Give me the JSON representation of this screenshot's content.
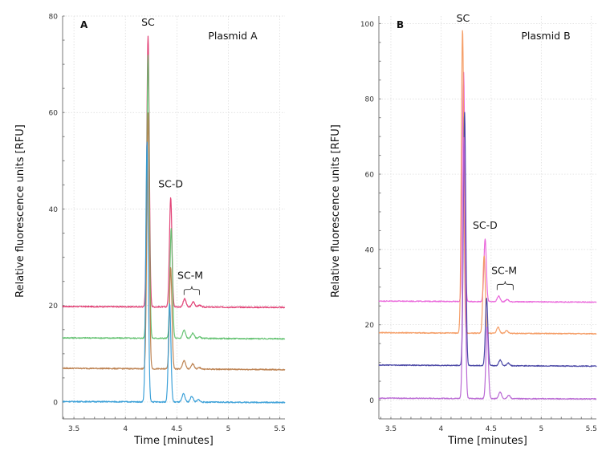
{
  "chart_data": [
    {
      "type": "line",
      "panel": "A",
      "title": "Plasmid A",
      "xlabel": "Time [minutes]",
      "ylabel": "Relative fluorescence units [RFU]",
      "xlim": [
        3.39,
        5.55
      ],
      "ylim": [
        -3.5,
        80
      ],
      "xticks": [
        "3.5",
        "4",
        "4.5",
        "5",
        "5.5"
      ],
      "xtick_values": [
        3.5,
        4,
        4.5,
        5,
        5.5
      ],
      "yticks": [
        "0",
        "20",
        "40",
        "60",
        "80"
      ],
      "ytick_values": [
        0,
        20,
        40,
        60,
        80
      ],
      "grid": true,
      "annotations": [
        {
          "text": "SC",
          "x": 4.22,
          "y": 78
        },
        {
          "text": "SC-D",
          "x": 4.44,
          "y": 44.5
        },
        {
          "text": "SC-M",
          "x": 4.63,
          "y": 25.5,
          "bracket": [
            4.57,
            4.72
          ]
        }
      ],
      "series": [
        {
          "name": "trace-pink",
          "color": "#e0336b",
          "baseline": 19.8,
          "baseline_end": 19.6,
          "peaks": [
            {
              "x": 4.22,
              "height": 76
            },
            {
              "x": 4.44,
              "height": 42.5
            },
            {
              "x": 4.575,
              "height": 21.5
            },
            {
              "x": 4.66,
              "height": 20.9
            },
            {
              "x": 4.72,
              "height": 20.2
            }
          ]
        },
        {
          "name": "trace-green",
          "color": "#5cbf6a",
          "baseline": 13.3,
          "baseline_end": 13.1,
          "peaks": [
            {
              "x": 4.22,
              "height": 72
            },
            {
              "x": 4.445,
              "height": 36
            },
            {
              "x": 4.57,
              "height": 15
            },
            {
              "x": 4.655,
              "height": 14.4
            },
            {
              "x": 4.72,
              "height": 13.6
            }
          ]
        },
        {
          "name": "trace-brown",
          "color": "#b87a45",
          "baseline": 7.0,
          "baseline_end": 6.7,
          "peaks": [
            {
              "x": 4.22,
              "height": 60
            },
            {
              "x": 4.44,
              "height": 28
            },
            {
              "x": 4.57,
              "height": 8.8
            },
            {
              "x": 4.655,
              "height": 8.1
            },
            {
              "x": 4.72,
              "height": 7.3
            }
          ]
        },
        {
          "name": "trace-blue",
          "color": "#2f9ad6",
          "baseline": 0.1,
          "baseline_end": -0.1,
          "peaks": [
            {
              "x": 4.21,
              "height": 54
            },
            {
              "x": 4.43,
              "height": 20.5
            },
            {
              "x": 4.565,
              "height": 1.8
            },
            {
              "x": 4.645,
              "height": 1.3
            },
            {
              "x": 4.71,
              "height": 0.6
            }
          ]
        }
      ]
    },
    {
      "type": "line",
      "panel": "B",
      "title": "Plasmid B",
      "xlabel": "Time [minutes]",
      "ylabel": "Relative fluorescence units [RFU]",
      "xlim": [
        3.38,
        5.55
      ],
      "ylim": [
        -5,
        102
      ],
      "xticks": [
        "3.5",
        "4",
        "4.5",
        "5",
        "5.5"
      ],
      "xtick_values": [
        3.5,
        4,
        4.5,
        5,
        5.5
      ],
      "yticks": [
        "0",
        "20",
        "40",
        "60",
        "80",
        "100"
      ],
      "ytick_values": [
        0,
        20,
        40,
        60,
        80,
        100
      ],
      "grid": true,
      "annotations": [
        {
          "text": "SC",
          "x": 4.22,
          "y": 100.5
        },
        {
          "text": "SC-D",
          "x": 4.44,
          "y": 45.5
        },
        {
          "text": "SC-M",
          "x": 4.63,
          "y": 33.5,
          "bracket": [
            4.56,
            4.72
          ]
        }
      ],
      "series": [
        {
          "name": "trace-magenta",
          "color": "#e85ad8",
          "baseline": 26.3,
          "baseline_end": 26.0,
          "peaks": [
            {
              "x": 4.225,
              "height": 87.5
            },
            {
              "x": 4.44,
              "height": 43
            },
            {
              "x": 4.575,
              "height": 27.8
            },
            {
              "x": 4.66,
              "height": 26.9
            }
          ]
        },
        {
          "name": "trace-orange",
          "color": "#f4965a",
          "baseline": 17.9,
          "baseline_end": 17.6,
          "peaks": [
            {
              "x": 4.215,
              "height": 98.5
            },
            {
              "x": 4.43,
              "height": 38.5
            },
            {
              "x": 4.57,
              "height": 19.5
            },
            {
              "x": 4.655,
              "height": 18.6
            }
          ]
        },
        {
          "name": "trace-navy",
          "color": "#3d3aa0",
          "baseline": 9.3,
          "baseline_end": 9.0,
          "peaks": [
            {
              "x": 4.235,
              "height": 76.5
            },
            {
              "x": 4.455,
              "height": 27.2
            },
            {
              "x": 4.59,
              "height": 10.8
            },
            {
              "x": 4.67,
              "height": 10.0
            }
          ]
        },
        {
          "name": "trace-purple",
          "color": "#b45cd0",
          "baseline": 0.5,
          "baseline_end": 0.3,
          "peaks": [
            {
              "x": 4.23,
              "height": 70
            },
            {
              "x": 4.46,
              "height": 19.5
            },
            {
              "x": 4.59,
              "height": 2.2
            },
            {
              "x": 4.675,
              "height": 1.4
            }
          ]
        }
      ]
    }
  ]
}
